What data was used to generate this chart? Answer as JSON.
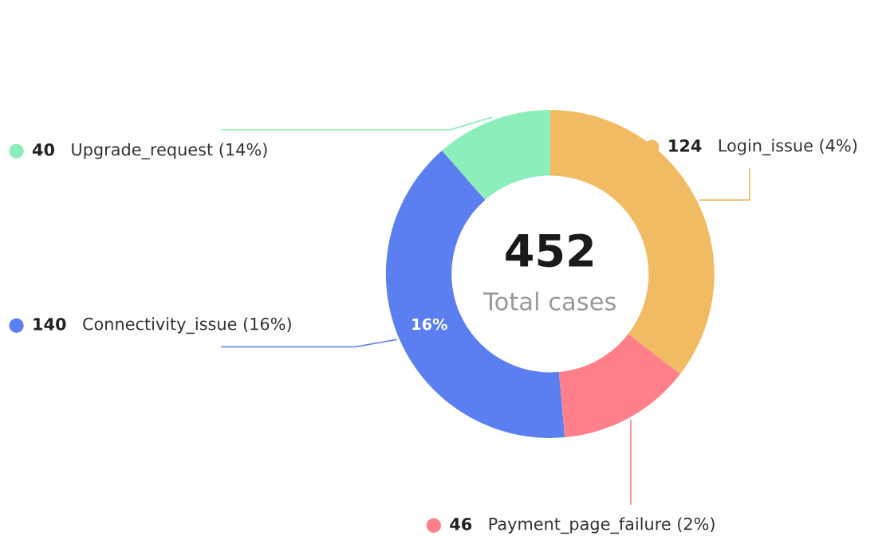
{
  "chart_data": {
    "type": "donut",
    "categories": [
      "Login_issue (4%)",
      "Payment_page_failure (2%)",
      "Connectivity_issue (16%)",
      "Upgrade_request (14%)"
    ],
    "values": [
      124,
      46,
      140,
      40
    ],
    "data_labels": true,
    "colors": [
      "#f0bb62",
      "#ff7f8a",
      "#5b7ff0",
      "#8ceebb"
    ],
    "annotations": [
      "452",
      "Total cases",
      {
        "text": "16%",
        "x": "Connectivity_issue (16%)"
      }
    ],
    "legend": false
  }
}
